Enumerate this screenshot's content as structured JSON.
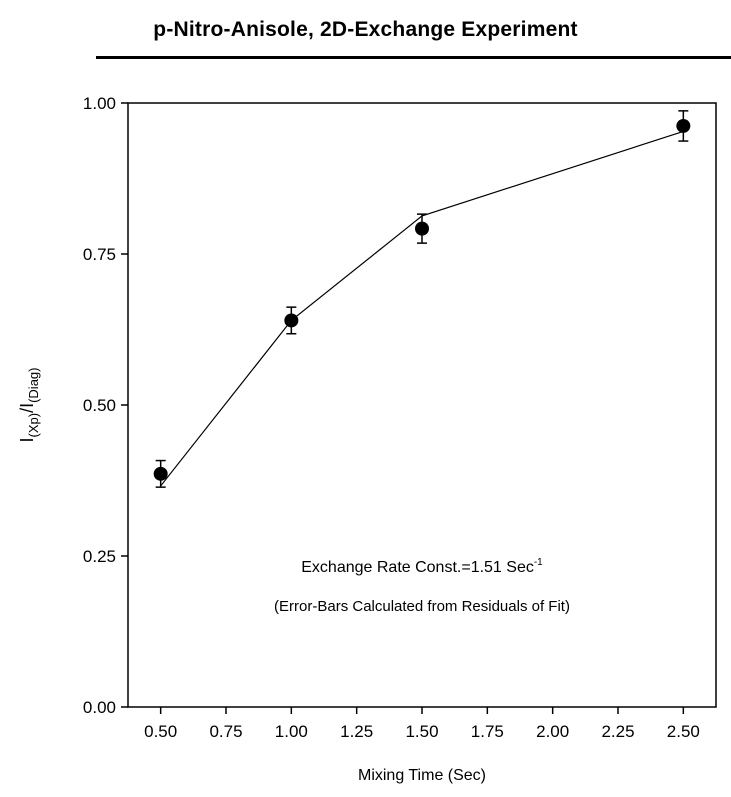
{
  "chart_data": {
    "type": "line",
    "title": "p-Nitro-Anisole, 2D-Exchange Experiment",
    "xlabel": "Mixing Time (Sec)",
    "ylabel_main": "I",
    "ylabel_sub1": "(Xp)",
    "ylabel_mid": "/I",
    "ylabel_sub2": "(Diag)",
    "xlim": [
      0.375,
      2.625
    ],
    "ylim": [
      0.0,
      1.0
    ],
    "x_ticks": [
      0.5,
      0.75,
      1.0,
      1.25,
      1.5,
      1.75,
      2.0,
      2.25,
      2.5
    ],
    "x_tick_labels": [
      "0.50",
      "0.75",
      "1.00",
      "1.25",
      "1.50",
      "1.75",
      "2.00",
      "2.25",
      "2.50"
    ],
    "y_ticks": [
      0.0,
      0.25,
      0.5,
      0.75,
      1.0
    ],
    "y_tick_labels": [
      "0.00",
      "0.25",
      "0.50",
      "0.75",
      "1.00"
    ],
    "grid": false,
    "series": [
      {
        "kind": "scatter-errorbar",
        "x": [
          0.5,
          1.0,
          1.5,
          2.5
        ],
        "y": [
          0.386,
          0.64,
          0.792,
          0.962
        ],
        "err": [
          0.022,
          0.022,
          0.024,
          0.025
        ]
      },
      {
        "kind": "fit-line",
        "x": [
          0.5,
          1.0,
          1.5,
          2.5
        ],
        "y": [
          0.366,
          0.64,
          0.813,
          0.953
        ]
      }
    ],
    "annotations": [
      {
        "main": "Exchange Rate Const.=1.51 Sec",
        "sup": "-1"
      },
      {
        "main": "(Error-Bars Calculated from Residuals of Fit)"
      }
    ]
  }
}
